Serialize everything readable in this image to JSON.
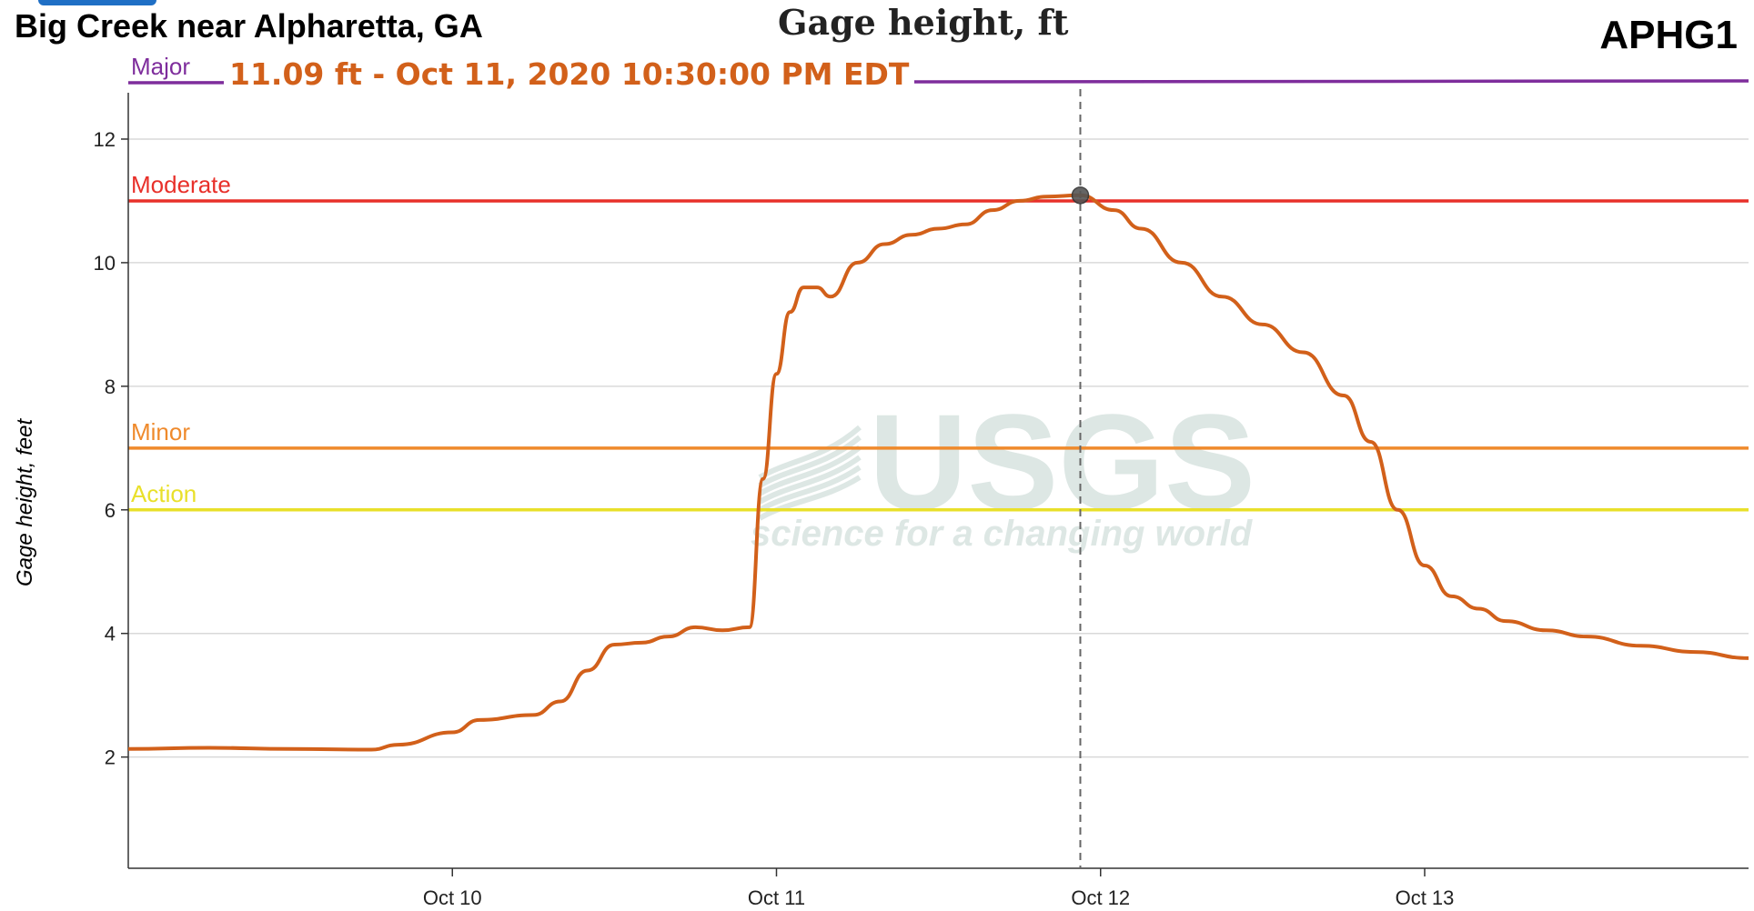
{
  "header": {
    "site_name": "Big Creek near Alpharetta, GA",
    "chart_title": "Gage height, ft",
    "site_id": "APHG1",
    "hover_readout": "11.09 ft - Oct 11, 2020 10:30:00 PM EDT"
  },
  "watermark": {
    "logo_text": "USGS",
    "tagline": "science for a changing world"
  },
  "colors": {
    "series": "#d2601a",
    "major": "#7e2d9c",
    "moderate": "#e8302a",
    "minor": "#ef8a2c",
    "action": "#e9e02a",
    "watermark": "#dde7e4",
    "tab": "#1f6fc5"
  },
  "chart_data": {
    "type": "line",
    "title": "Gage height, ft",
    "ylabel": "Gage height, feet",
    "xlabel": "",
    "xlim": [
      "Oct 9, 2020 00:00",
      "Oct 13, 2020 23:59"
    ],
    "ylim": [
      0.2,
      12.75
    ],
    "y_ticks": [
      2,
      4,
      6,
      8,
      10,
      12
    ],
    "x_ticks": [
      "Oct 10",
      "Oct 11",
      "Oct 12",
      "Oct 13"
    ],
    "grid": true,
    "flood_stages": [
      {
        "name": "Major",
        "value": 13.0
      },
      {
        "name": "Moderate",
        "value": 11.0
      },
      {
        "name": "Minor",
        "value": 7.0
      },
      {
        "name": "Action",
        "value": 6.0
      }
    ],
    "highlight": {
      "x": "Oct 11, 2020 22:30",
      "y": 11.09
    },
    "series": [
      {
        "x": [
          "Oct 9 00:00",
          "Oct 9 06:00",
          "Oct 9 12:00",
          "Oct 9 18:00",
          "Oct 9 20:00",
          "Oct 10 00:00",
          "Oct 10 02:00",
          "Oct 10 06:00",
          "Oct 10 08:00",
          "Oct 10 10:00",
          "Oct 10 12:00",
          "Oct 10 14:00",
          "Oct 10 16:00",
          "Oct 10 18:00",
          "Oct 10 20:00",
          "Oct 10 22:00",
          "Oct 10 23:00",
          "Oct 11 00:00",
          "Oct 11 01:00",
          "Oct 11 02:00",
          "Oct 11 03:00",
          "Oct 11 04:00",
          "Oct 11 06:00",
          "Oct 11 08:00",
          "Oct 11 10:00",
          "Oct 11 12:00",
          "Oct 11 14:00",
          "Oct 11 16:00",
          "Oct 11 18:00",
          "Oct 11 20:00",
          "Oct 11 22:30",
          "Oct 12 01:00",
          "Oct 12 03:00",
          "Oct 12 06:00",
          "Oct 12 09:00",
          "Oct 12 12:00",
          "Oct 12 15:00",
          "Oct 12 18:00",
          "Oct 12 20:00",
          "Oct 12 22:00",
          "Oct 13 00:00",
          "Oct 13 02:00",
          "Oct 13 04:00",
          "Oct 13 06:00",
          "Oct 13 09:00",
          "Oct 13 12:00",
          "Oct 13 16:00",
          "Oct 13 20:00",
          "Oct 13 23:59"
        ],
        "values": [
          2.13,
          2.15,
          2.13,
          2.12,
          2.2,
          2.4,
          2.6,
          2.68,
          2.9,
          3.4,
          3.82,
          3.85,
          3.95,
          4.1,
          4.05,
          4.1,
          6.5,
          8.2,
          9.2,
          9.6,
          9.6,
          9.45,
          10.0,
          10.3,
          10.45,
          10.55,
          10.62,
          10.85,
          11.0,
          11.07,
          11.09,
          10.85,
          10.55,
          10.0,
          9.45,
          9.0,
          8.55,
          7.85,
          7.1,
          6.0,
          5.1,
          4.6,
          4.4,
          4.2,
          4.05,
          3.95,
          3.8,
          3.7,
          3.6
        ]
      }
    ]
  }
}
